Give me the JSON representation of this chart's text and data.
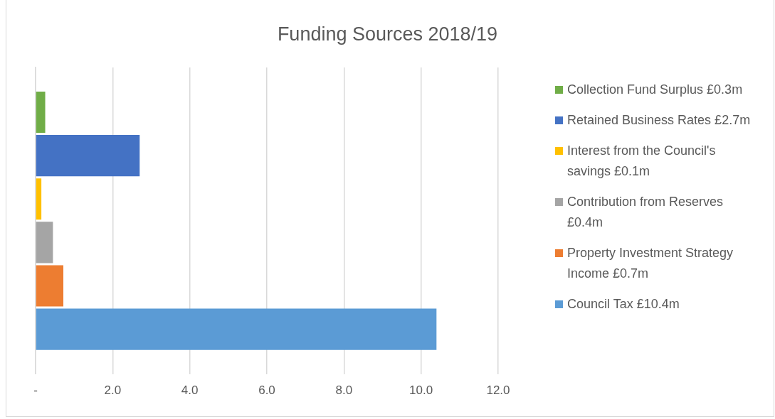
{
  "chart_data": {
    "type": "bar",
    "orientation": "horizontal",
    "title": "Funding Sources 2018/19",
    "categories": [
      null
    ],
    "series": [
      {
        "name": "Collection Fund Surplus £0.3m",
        "color": "#70ad47",
        "values": [
          0.25
        ]
      },
      {
        "name": "Retained Business Rates £2.7m",
        "color": "#4472c4",
        "values": [
          2.7
        ]
      },
      {
        "name": "Interest from the Council's savings £0.1m",
        "color": "#ffc000",
        "values": [
          0.15
        ]
      },
      {
        "name": "Contribution from Reserves £0.4m",
        "color": "#a5a5a5",
        "values": [
          0.45
        ]
      },
      {
        "name": "Property Investment Strategy Income £0.7m",
        "color": "#ed7d31",
        "values": [
          0.72
        ]
      },
      {
        "name": "Council Tax £10.4m",
        "color": "#5b9bd5",
        "values": [
          10.4
        ]
      }
    ],
    "xlim": [
      0,
      12
    ],
    "xticks": [
      {
        "value": 0,
        "label": "-"
      },
      {
        "value": 2,
        "label": "2.0"
      },
      {
        "value": 4,
        "label": "4.0"
      },
      {
        "value": 6,
        "label": "6.0"
      },
      {
        "value": 8,
        "label": "8.0"
      },
      {
        "value": 10,
        "label": "10.0"
      },
      {
        "value": 12,
        "label": "12.0"
      }
    ],
    "grid": "x",
    "legend": "right"
  }
}
